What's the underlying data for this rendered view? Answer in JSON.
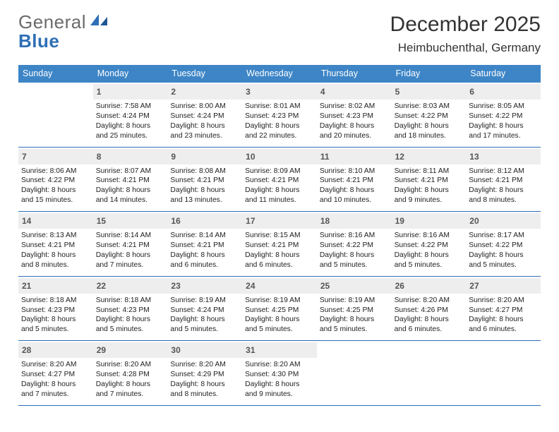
{
  "brand": {
    "word1": "General",
    "word2": "Blue"
  },
  "title": "December 2025",
  "location": "Heimbuchenthal, Germany",
  "colors": {
    "header_bg": "#3d85c6",
    "header_text": "#ffffff",
    "daynum_bg": "#eeeeee",
    "rule": "#2f6fb5",
    "logo_gray": "#6b6b6b",
    "logo_blue": "#2f6fb5"
  },
  "typography": {
    "title_fontsize": 30,
    "location_fontsize": 17,
    "dow_fontsize": 12.5,
    "daynum_fontsize": 12,
    "body_fontsize": 10.3
  },
  "dow": [
    "Sunday",
    "Monday",
    "Tuesday",
    "Wednesday",
    "Thursday",
    "Friday",
    "Saturday"
  ],
  "weeks": [
    [
      {
        "n": "",
        "lines": []
      },
      {
        "n": "1",
        "lines": [
          "Sunrise: 7:58 AM",
          "Sunset: 4:24 PM",
          "Daylight: 8 hours",
          "and 25 minutes."
        ]
      },
      {
        "n": "2",
        "lines": [
          "Sunrise: 8:00 AM",
          "Sunset: 4:24 PM",
          "Daylight: 8 hours",
          "and 23 minutes."
        ]
      },
      {
        "n": "3",
        "lines": [
          "Sunrise: 8:01 AM",
          "Sunset: 4:23 PM",
          "Daylight: 8 hours",
          "and 22 minutes."
        ]
      },
      {
        "n": "4",
        "lines": [
          "Sunrise: 8:02 AM",
          "Sunset: 4:23 PM",
          "Daylight: 8 hours",
          "and 20 minutes."
        ]
      },
      {
        "n": "5",
        "lines": [
          "Sunrise: 8:03 AM",
          "Sunset: 4:22 PM",
          "Daylight: 8 hours",
          "and 18 minutes."
        ]
      },
      {
        "n": "6",
        "lines": [
          "Sunrise: 8:05 AM",
          "Sunset: 4:22 PM",
          "Daylight: 8 hours",
          "and 17 minutes."
        ]
      }
    ],
    [
      {
        "n": "7",
        "lines": [
          "Sunrise: 8:06 AM",
          "Sunset: 4:22 PM",
          "Daylight: 8 hours",
          "and 15 minutes."
        ]
      },
      {
        "n": "8",
        "lines": [
          "Sunrise: 8:07 AM",
          "Sunset: 4:21 PM",
          "Daylight: 8 hours",
          "and 14 minutes."
        ]
      },
      {
        "n": "9",
        "lines": [
          "Sunrise: 8:08 AM",
          "Sunset: 4:21 PM",
          "Daylight: 8 hours",
          "and 13 minutes."
        ]
      },
      {
        "n": "10",
        "lines": [
          "Sunrise: 8:09 AM",
          "Sunset: 4:21 PM",
          "Daylight: 8 hours",
          "and 11 minutes."
        ]
      },
      {
        "n": "11",
        "lines": [
          "Sunrise: 8:10 AM",
          "Sunset: 4:21 PM",
          "Daylight: 8 hours",
          "and 10 minutes."
        ]
      },
      {
        "n": "12",
        "lines": [
          "Sunrise: 8:11 AM",
          "Sunset: 4:21 PM",
          "Daylight: 8 hours",
          "and 9 minutes."
        ]
      },
      {
        "n": "13",
        "lines": [
          "Sunrise: 8:12 AM",
          "Sunset: 4:21 PM",
          "Daylight: 8 hours",
          "and 8 minutes."
        ]
      }
    ],
    [
      {
        "n": "14",
        "lines": [
          "Sunrise: 8:13 AM",
          "Sunset: 4:21 PM",
          "Daylight: 8 hours",
          "and 8 minutes."
        ]
      },
      {
        "n": "15",
        "lines": [
          "Sunrise: 8:14 AM",
          "Sunset: 4:21 PM",
          "Daylight: 8 hours",
          "and 7 minutes."
        ]
      },
      {
        "n": "16",
        "lines": [
          "Sunrise: 8:14 AM",
          "Sunset: 4:21 PM",
          "Daylight: 8 hours",
          "and 6 minutes."
        ]
      },
      {
        "n": "17",
        "lines": [
          "Sunrise: 8:15 AM",
          "Sunset: 4:21 PM",
          "Daylight: 8 hours",
          "and 6 minutes."
        ]
      },
      {
        "n": "18",
        "lines": [
          "Sunrise: 8:16 AM",
          "Sunset: 4:22 PM",
          "Daylight: 8 hours",
          "and 5 minutes."
        ]
      },
      {
        "n": "19",
        "lines": [
          "Sunrise: 8:16 AM",
          "Sunset: 4:22 PM",
          "Daylight: 8 hours",
          "and 5 minutes."
        ]
      },
      {
        "n": "20",
        "lines": [
          "Sunrise: 8:17 AM",
          "Sunset: 4:22 PM",
          "Daylight: 8 hours",
          "and 5 minutes."
        ]
      }
    ],
    [
      {
        "n": "21",
        "lines": [
          "Sunrise: 8:18 AM",
          "Sunset: 4:23 PM",
          "Daylight: 8 hours",
          "and 5 minutes."
        ]
      },
      {
        "n": "22",
        "lines": [
          "Sunrise: 8:18 AM",
          "Sunset: 4:23 PM",
          "Daylight: 8 hours",
          "and 5 minutes."
        ]
      },
      {
        "n": "23",
        "lines": [
          "Sunrise: 8:19 AM",
          "Sunset: 4:24 PM",
          "Daylight: 8 hours",
          "and 5 minutes."
        ]
      },
      {
        "n": "24",
        "lines": [
          "Sunrise: 8:19 AM",
          "Sunset: 4:25 PM",
          "Daylight: 8 hours",
          "and 5 minutes."
        ]
      },
      {
        "n": "25",
        "lines": [
          "Sunrise: 8:19 AM",
          "Sunset: 4:25 PM",
          "Daylight: 8 hours",
          "and 5 minutes."
        ]
      },
      {
        "n": "26",
        "lines": [
          "Sunrise: 8:20 AM",
          "Sunset: 4:26 PM",
          "Daylight: 8 hours",
          "and 6 minutes."
        ]
      },
      {
        "n": "27",
        "lines": [
          "Sunrise: 8:20 AM",
          "Sunset: 4:27 PM",
          "Daylight: 8 hours",
          "and 6 minutes."
        ]
      }
    ],
    [
      {
        "n": "28",
        "lines": [
          "Sunrise: 8:20 AM",
          "Sunset: 4:27 PM",
          "Daylight: 8 hours",
          "and 7 minutes."
        ]
      },
      {
        "n": "29",
        "lines": [
          "Sunrise: 8:20 AM",
          "Sunset: 4:28 PM",
          "Daylight: 8 hours",
          "and 7 minutes."
        ]
      },
      {
        "n": "30",
        "lines": [
          "Sunrise: 8:20 AM",
          "Sunset: 4:29 PM",
          "Daylight: 8 hours",
          "and 8 minutes."
        ]
      },
      {
        "n": "31",
        "lines": [
          "Sunrise: 8:20 AM",
          "Sunset: 4:30 PM",
          "Daylight: 8 hours",
          "and 9 minutes."
        ]
      },
      {
        "n": "",
        "lines": []
      },
      {
        "n": "",
        "lines": []
      },
      {
        "n": "",
        "lines": []
      }
    ]
  ]
}
